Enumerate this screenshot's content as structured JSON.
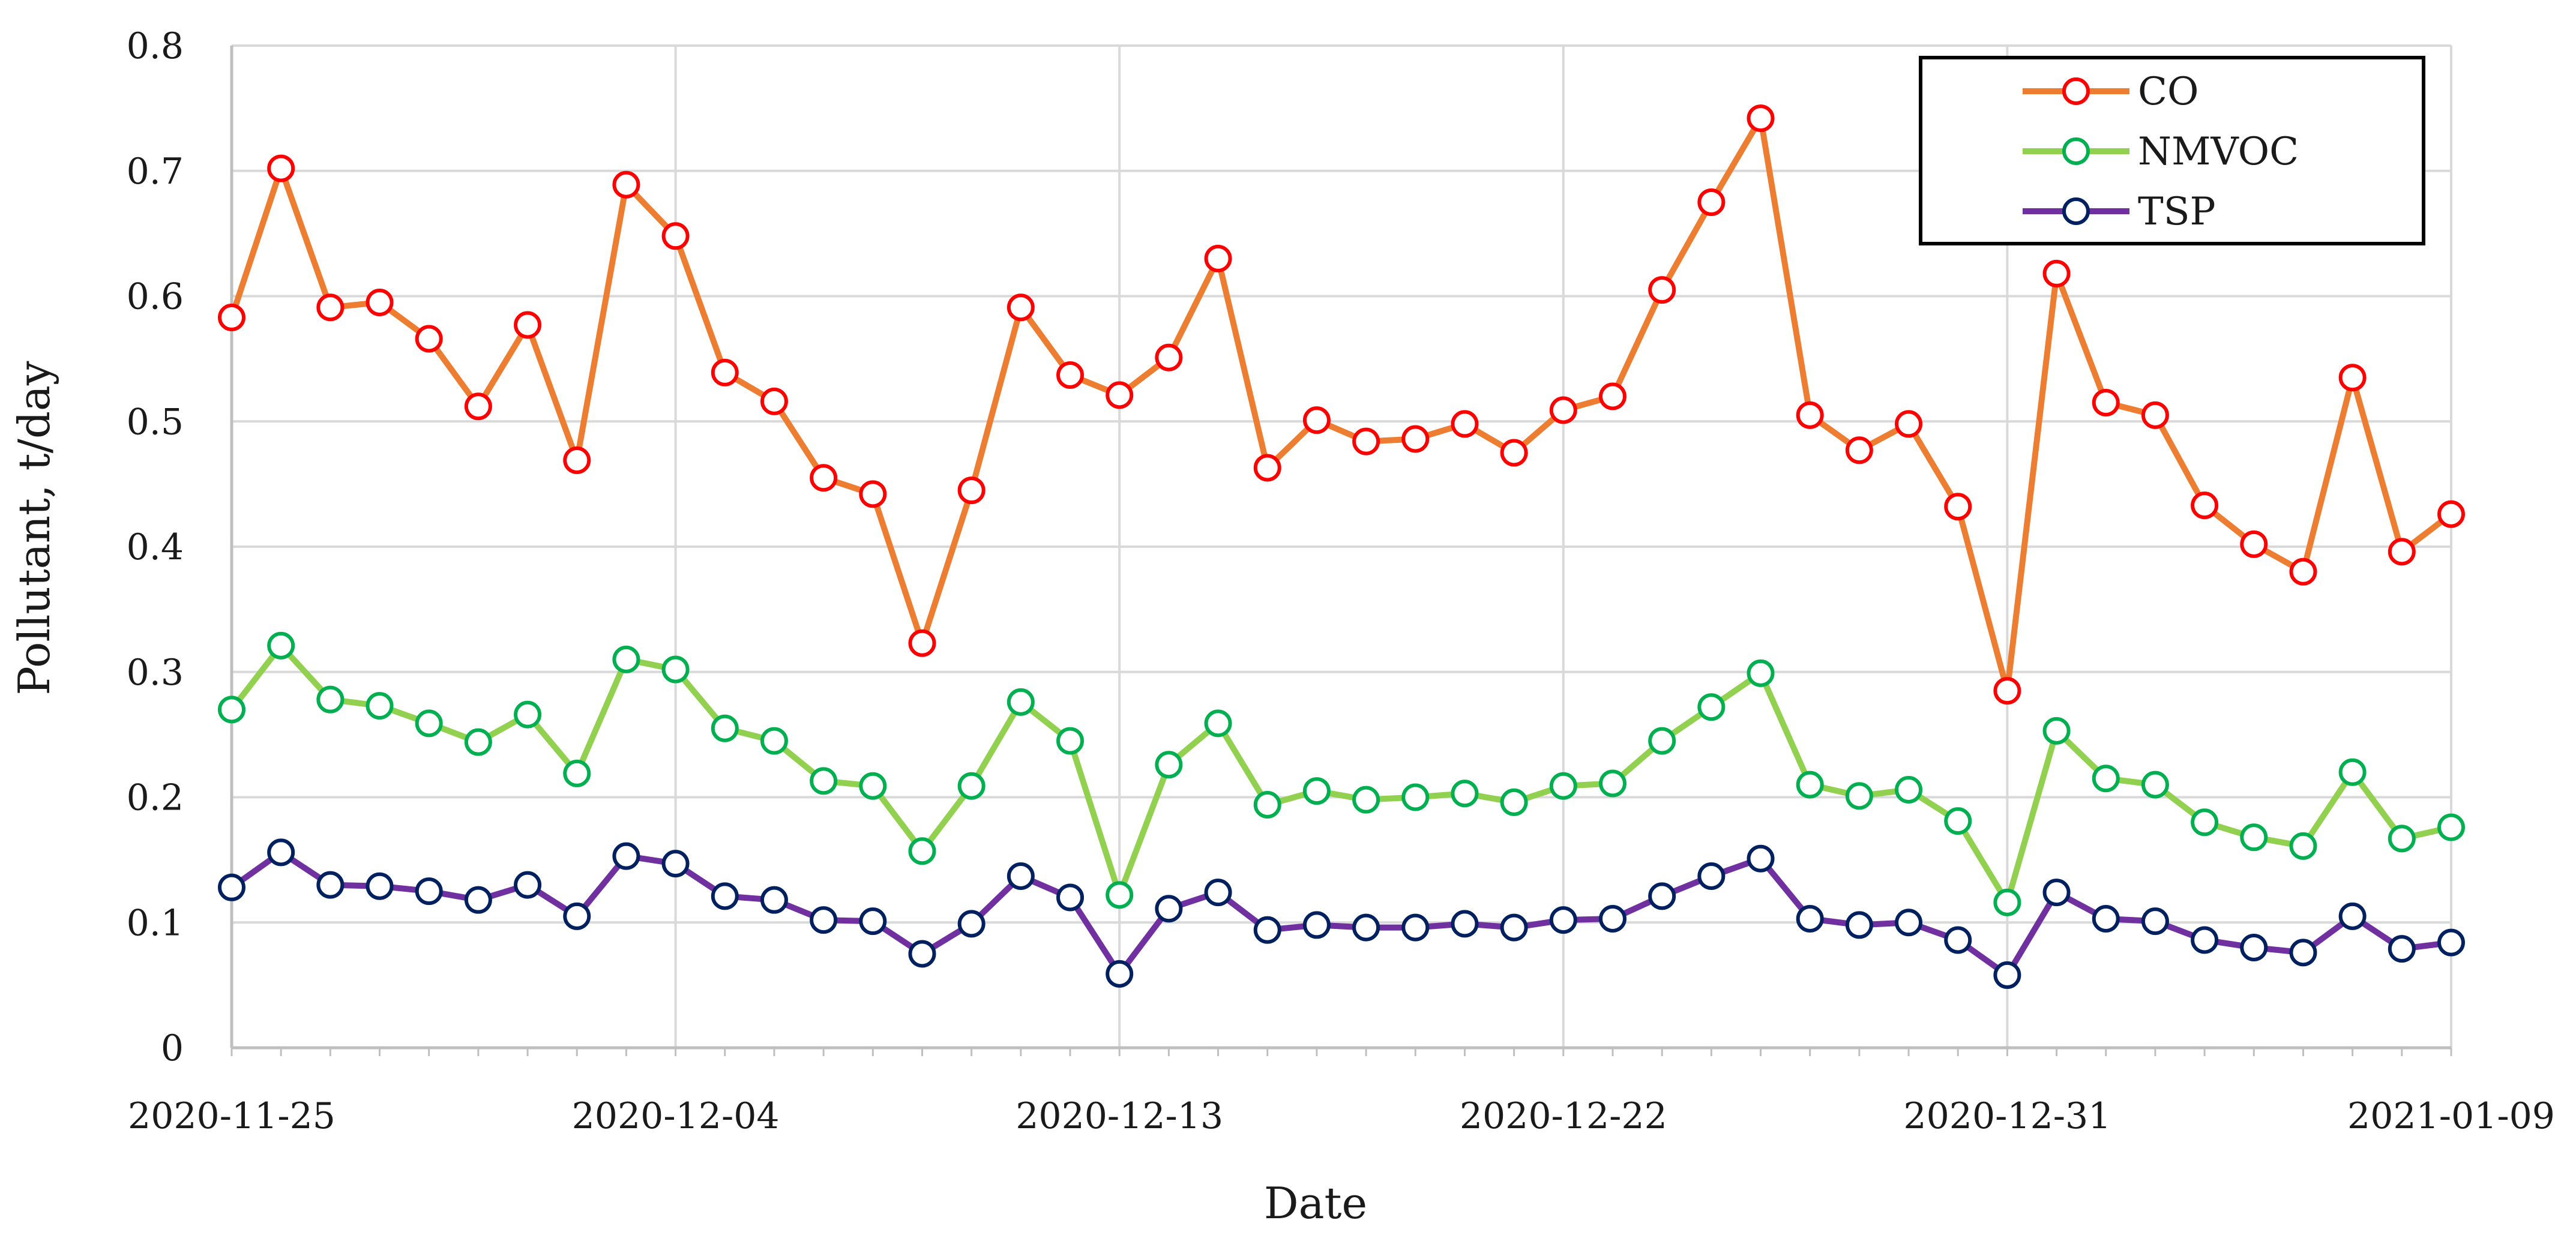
{
  "chart_data": {
    "type": "line",
    "xlabel": "Date",
    "ylabel": "Pollutant, t/day",
    "ylim": [
      0,
      0.8
    ],
    "yticks": [
      "0",
      "0.1",
      "0.2",
      "0.3",
      "0.4",
      "0.5",
      "0.6",
      "0.7",
      "0.8"
    ],
    "xlim": [
      "2020-11-25",
      "2021-01-09"
    ],
    "xticks": [
      "2020-11-25",
      "2020-12-04",
      "2020-12-13",
      "2020-12-22",
      "2020-12-31",
      "2021-01-09"
    ],
    "grid": true,
    "legend_position": "top-right",
    "dates": [
      "2020-11-25",
      "2020-11-26",
      "2020-11-27",
      "2020-11-28",
      "2020-11-29",
      "2020-11-30",
      "2020-12-01",
      "2020-12-02",
      "2020-12-03",
      "2020-12-04",
      "2020-12-05",
      "2020-12-06",
      "2020-12-07",
      "2020-12-08",
      "2020-12-09",
      "2020-12-10",
      "2020-12-11",
      "2020-12-12",
      "2020-12-13",
      "2020-12-14",
      "2020-12-15",
      "2020-12-16",
      "2020-12-17",
      "2020-12-18",
      "2020-12-19",
      "2020-12-20",
      "2020-12-21",
      "2020-12-22",
      "2020-12-23",
      "2020-12-24",
      "2020-12-25",
      "2020-12-26",
      "2020-12-27",
      "2020-12-28",
      "2020-12-29",
      "2020-12-30",
      "2020-12-31",
      "2021-01-01",
      "2021-01-02",
      "2021-01-03",
      "2021-01-04",
      "2021-01-05",
      "2021-01-06",
      "2021-01-07",
      "2021-01-08",
      "2021-01-09"
    ],
    "series": [
      {
        "name": "CO",
        "line_color": "#ed7d31",
        "marker_color": "#ff0000",
        "values": [
          0.583,
          0.702,
          0.591,
          0.595,
          0.566,
          0.512,
          0.577,
          0.469,
          0.689,
          0.648,
          0.539,
          0.516,
          0.455,
          0.442,
          0.323,
          0.445,
          0.591,
          0.537,
          0.521,
          0.551,
          0.63,
          0.463,
          0.501,
          0.484,
          0.486,
          0.498,
          0.475,
          0.509,
          0.52,
          0.605,
          0.675,
          0.742,
          0.505,
          0.477,
          0.498,
          0.432,
          0.285,
          0.618,
          0.515,
          0.505,
          0.433,
          0.402,
          0.38,
          0.535,
          0.396,
          0.426
        ]
      },
      {
        "name": "NMVOC",
        "line_color": "#92d050",
        "marker_color": "#00b050",
        "values": [
          0.27,
          0.321,
          0.278,
          0.273,
          0.259,
          0.244,
          0.266,
          0.219,
          0.31,
          0.302,
          0.255,
          0.245,
          0.213,
          0.209,
          0.157,
          0.209,
          0.276,
          0.245,
          0.122,
          0.226,
          0.259,
          0.194,
          0.205,
          0.198,
          0.2,
          0.203,
          0.196,
          0.209,
          0.211,
          0.245,
          0.272,
          0.299,
          0.21,
          0.201,
          0.206,
          0.181,
          0.116,
          0.253,
          0.215,
          0.21,
          0.18,
          0.168,
          0.161,
          0.22,
          0.167,
          0.176
        ]
      },
      {
        "name": "TSP",
        "line_color": "#7030a0",
        "marker_color": "#002060",
        "values": [
          0.128,
          0.156,
          0.13,
          0.129,
          0.125,
          0.118,
          0.13,
          0.105,
          0.153,
          0.147,
          0.121,
          0.118,
          0.102,
          0.101,
          0.075,
          0.099,
          0.137,
          0.12,
          0.059,
          0.111,
          0.124,
          0.094,
          0.098,
          0.096,
          0.096,
          0.099,
          0.096,
          0.102,
          0.103,
          0.121,
          0.137,
          0.151,
          0.103,
          0.098,
          0.1,
          0.086,
          0.058,
          0.124,
          0.103,
          0.101,
          0.086,
          0.08,
          0.076,
          0.105,
          0.079,
          0.084
        ]
      }
    ]
  }
}
